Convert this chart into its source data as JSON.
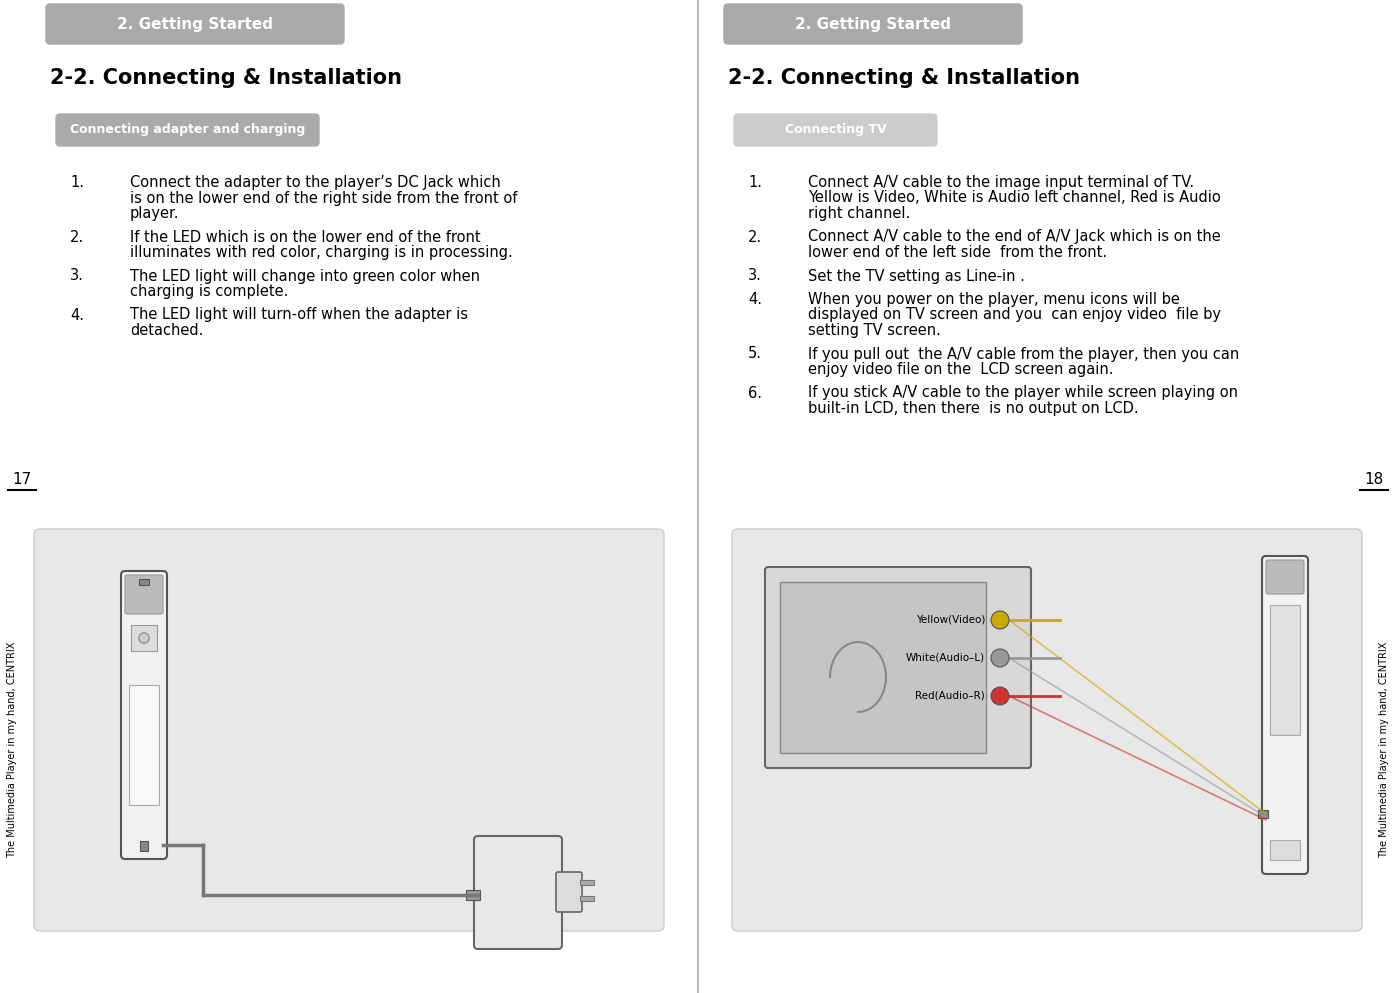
{
  "bg_color": "#ffffff",
  "left_panel": {
    "header_text": "2. Getting Started",
    "header_bg": "#aaaaaa",
    "section_label": "Connecting adapter and charging",
    "section_label_bg": "#aaaaaa",
    "title": "2-2. Connecting & Installation",
    "page_number": "17",
    "side_text": "The Multimedia Player in my hand, CENTRIX",
    "items": [
      {
        "num": "1.",
        "text": "Connect the adapter to the player’s DC Jack which\nis on the lower end of the right side from the front of\nplayer."
      },
      {
        "num": "2.",
        "text": "If the LED which is on the lower end of the front\nilluminates with red color, charging is in processing."
      },
      {
        "num": "3.",
        "text": "The LED light will change into green color when\ncharging is complete."
      },
      {
        "num": "4.",
        "text": "The LED light will turn-off when the adapter is\ndetached."
      }
    ],
    "image_bg": "#e8e8e8"
  },
  "right_panel": {
    "header_text": "2. Getting Started",
    "header_bg": "#aaaaaa",
    "section_label": "Connecting TV",
    "section_label_bg": "#cccccc",
    "title": "2-2. Connecting & Installation",
    "page_number": "18",
    "side_text": "The Multimedia Player in my hand, CENTRIX",
    "items": [
      {
        "num": "1.",
        "text": "Connect A/V cable to the image input terminal of TV.\nYellow is Video, White is Audio left channel, Red is Audio\nright channel."
      },
      {
        "num": "2.",
        "text": "Connect A/V cable to the end of A/V Jack which is on the\nlower end of the left side  from the front."
      },
      {
        "num": "3.",
        "text": "Set the TV setting as Line-in ."
      },
      {
        "num": "4.",
        "text": "When you power on the player, menu icons will be\ndisplayed on TV screen and you  can enjoy video  file by\nsetting TV screen."
      },
      {
        "num": "5.",
        "text": "If you pull out  the A/V cable from the player, then you can\nenjoy video file on the  LCD screen again."
      },
      {
        "num": "6.",
        "text": "If you stick A/V cable to the player while screen playing on\nbuilt-in LCD, then there  is no output on LCD."
      }
    ],
    "image_bg": "#e8e8e8"
  },
  "divider_color": "#aaaaaa",
  "text_color": "#000000"
}
